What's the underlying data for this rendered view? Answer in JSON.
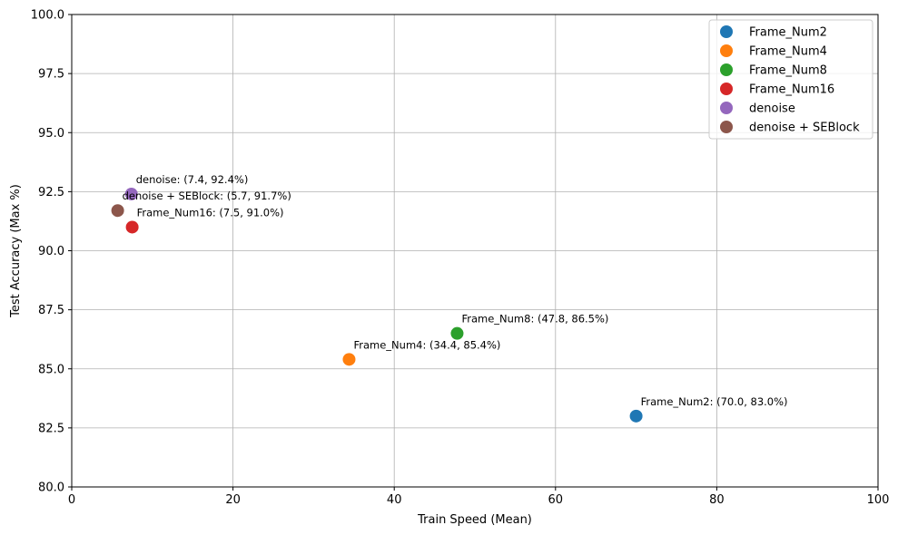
{
  "chart_data": {
    "type": "scatter",
    "xlabel": "Train Speed (Mean)",
    "ylabel": "Test Accuracy (Max %)",
    "xlim": [
      0,
      100
    ],
    "ylim": [
      80,
      100
    ],
    "xticks": [
      0,
      20,
      40,
      60,
      80,
      100
    ],
    "yticks": [
      80.0,
      82.5,
      85.0,
      87.5,
      90.0,
      92.5,
      95.0,
      97.5,
      100.0
    ],
    "xtick_labels": [
      "0",
      "20",
      "40",
      "60",
      "80",
      "100"
    ],
    "ytick_labels": [
      "80.0",
      "82.5",
      "85.0",
      "87.5",
      "90.0",
      "92.5",
      "95.0",
      "97.5",
      "100.0"
    ],
    "grid": true,
    "legend_position": "top-right",
    "series": [
      {
        "name": "Frame_Num2",
        "color": "#1f77b4",
        "x": 70.0,
        "y": 83.0,
        "annotation": "Frame_Num2: (70.0, 83.0%)"
      },
      {
        "name": "Frame_Num4",
        "color": "#ff7f0e",
        "x": 34.4,
        "y": 85.4,
        "annotation": "Frame_Num4: (34.4, 85.4%)"
      },
      {
        "name": "Frame_Num8",
        "color": "#2ca02c",
        "x": 47.8,
        "y": 86.5,
        "annotation": "Frame_Num8: (47.8, 86.5%)"
      },
      {
        "name": "Frame_Num16",
        "color": "#d62728",
        "x": 7.5,
        "y": 91.0,
        "annotation": "Frame_Num16: (7.5, 91.0%)"
      },
      {
        "name": "denoise",
        "color": "#9467bd",
        "x": 7.4,
        "y": 92.4,
        "annotation": "denoise: (7.4, 92.4%)"
      },
      {
        "name": "denoise + SEBlock",
        "color": "#8c564b",
        "x": 5.7,
        "y": 91.7,
        "annotation": "denoise + SEBlock: (5.7, 91.7%)"
      }
    ]
  }
}
